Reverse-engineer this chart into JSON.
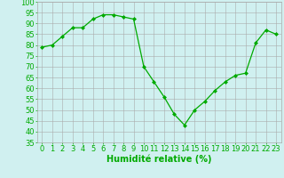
{
  "x": [
    0,
    1,
    2,
    3,
    4,
    5,
    6,
    7,
    8,
    9,
    10,
    11,
    12,
    13,
    14,
    15,
    16,
    17,
    18,
    19,
    20,
    21,
    22,
    23
  ],
  "y": [
    79,
    80,
    84,
    88,
    88,
    92,
    94,
    94,
    93,
    92,
    70,
    63,
    56,
    48,
    43,
    50,
    54,
    59,
    63,
    66,
    67,
    81,
    87,
    85
  ],
  "line_color": "#00aa00",
  "marker": "D",
  "marker_size": 2,
  "bg_color": "#d0f0f0",
  "grid_color": "#aaaaaa",
  "xlabel": "Humidité relative (%)",
  "xlabel_color": "#00aa00",
  "xlabel_fontsize": 7,
  "tick_color": "#00aa00",
  "tick_fontsize": 6,
  "ylim": [
    35,
    100
  ],
  "yticks": [
    35,
    40,
    45,
    50,
    55,
    60,
    65,
    70,
    75,
    80,
    85,
    90,
    95,
    100
  ],
  "xlim": [
    -0.5,
    23.5
  ],
  "xticks": [
    0,
    1,
    2,
    3,
    4,
    5,
    6,
    7,
    8,
    9,
    10,
    11,
    12,
    13,
    14,
    15,
    16,
    17,
    18,
    19,
    20,
    21,
    22,
    23
  ]
}
